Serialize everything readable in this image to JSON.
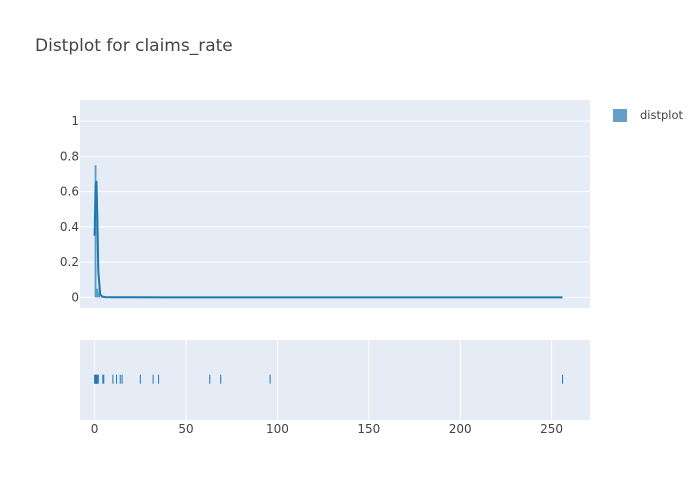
{
  "chart_data": {
    "type": "line",
    "title": "Distplot for claims_rate",
    "xlabel": "",
    "ylabel": "",
    "legend": {
      "position": "top-right",
      "entries": [
        "distplot"
      ]
    },
    "grid": true,
    "colors": {
      "series": "#1f77b4",
      "histogram": "#1f77b4",
      "plot_background": "#e5ecf6",
      "gridline": "#ffffff",
      "text": "#444444",
      "title": "#444444"
    },
    "x_ticks": [
      0,
      50,
      100,
      150,
      200,
      250
    ],
    "y_ticks": [
      0,
      0.2,
      0.4,
      0.6,
      0.8,
      1
    ],
    "y_tick_labels": [
      "0",
      "0.2",
      "0.4",
      "0.6",
      "0.8",
      "1"
    ],
    "xlim": [
      -8,
      271
    ],
    "ylim": [
      -0.06,
      1.12
    ],
    "series": [
      {
        "name": "distplot",
        "kde": {
          "x": [
            0,
            0.5,
            1,
            1.5,
            2,
            3,
            4,
            6,
            10,
            20,
            40,
            80,
            120,
            180,
            256
          ],
          "y": [
            0.35,
            0.63,
            0.66,
            0.45,
            0.15,
            0.02,
            0.005,
            0.002,
            0.001,
            0.001,
            0.0,
            0.0,
            0.0,
            0.0,
            0.0
          ]
        },
        "histogram": {
          "bins": [
            {
              "x0": 0,
              "x1": 1,
              "y": 0.75
            },
            {
              "x0": 1,
              "x1": 2,
              "y": 0.05
            },
            {
              "x0": 2,
              "x1": 3,
              "y": 0.03
            }
          ]
        }
      }
    ],
    "rug": {
      "values": [
        0,
        0.3,
        0.5,
        0.8,
        1,
        1.2,
        1.5,
        2,
        4.5,
        5,
        10,
        12,
        14,
        15,
        25,
        32,
        35,
        63,
        69,
        96,
        256
      ]
    }
  }
}
